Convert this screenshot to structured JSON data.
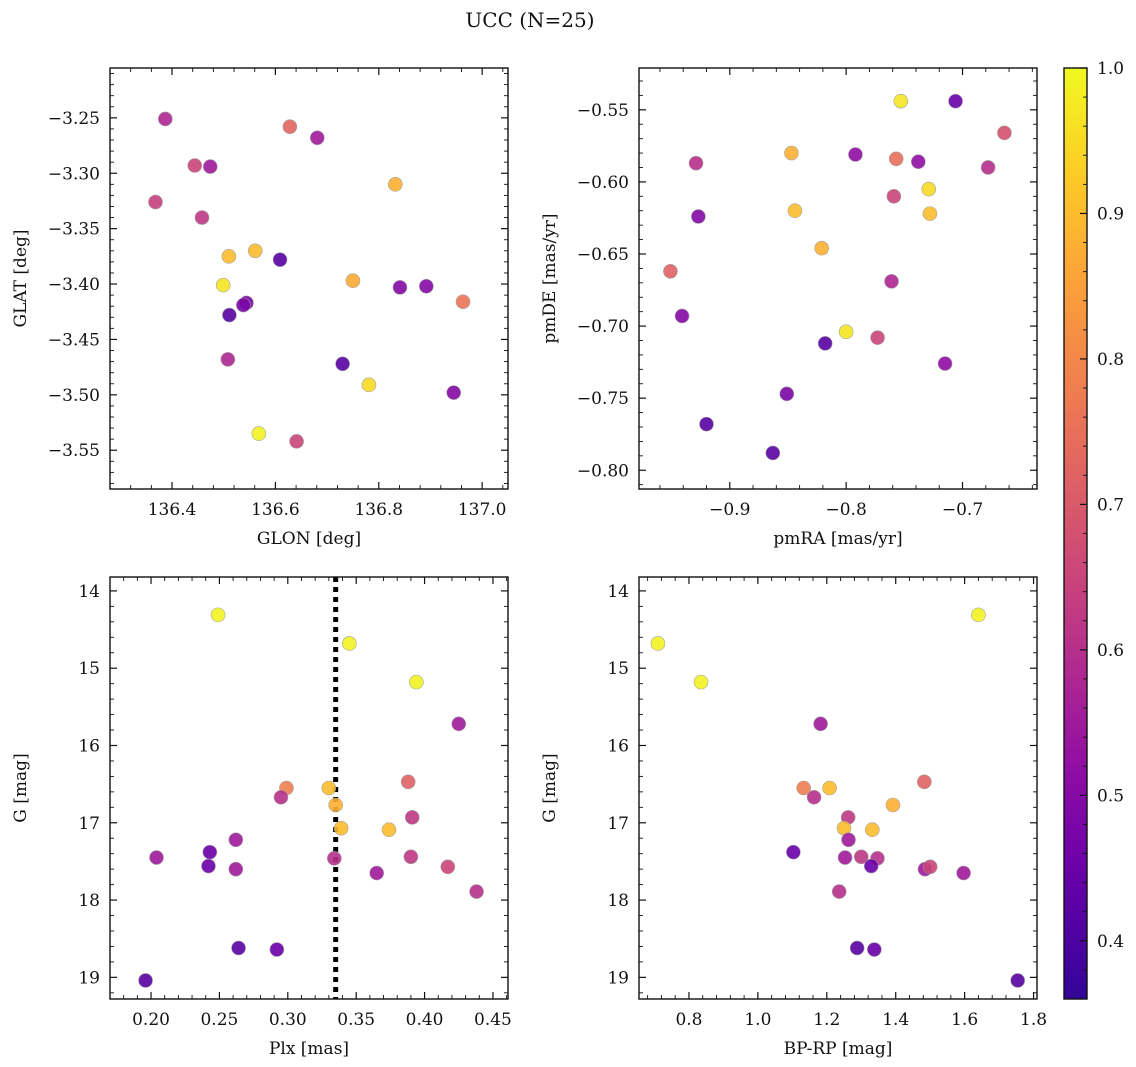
{
  "figure_title": "UCC (N=25)",
  "colorbar": {
    "min": 0.36,
    "max": 1.0,
    "ticks": [
      0.4,
      0.5,
      0.6,
      0.7,
      0.8,
      0.9,
      1.0
    ],
    "tick_labels": [
      "0.4",
      "0.5",
      "0.6",
      "0.7",
      "0.8",
      "0.9",
      "1.0"
    ],
    "colormap": "plasma"
  },
  "chart_data": [
    {
      "type": "scatter",
      "xlabel": "GLON [deg]",
      "ylabel": "GLAT [deg]",
      "xlim": [
        136.28,
        137.05
      ],
      "ylim": [
        -3.585,
        -3.205
      ],
      "xticks": [
        136.4,
        136.6,
        136.8,
        137.0
      ],
      "xtick_labels": [
        "136.4",
        "136.6",
        "136.8",
        "137.0"
      ],
      "yticks": [
        -3.25,
        -3.3,
        -3.35,
        -3.4,
        -3.45,
        -3.5,
        -3.55
      ],
      "ytick_labels": [
        "−3.25",
        "−3.30",
        "−3.35",
        "−3.40",
        "−3.45",
        "−3.50",
        "−3.55"
      ],
      "x": [
        136.387,
        136.628,
        136.444,
        136.474,
        136.681,
        136.368,
        136.832,
        136.458,
        136.561,
        136.51,
        136.609,
        136.499,
        136.75,
        136.841,
        136.892,
        136.963,
        136.544,
        136.538,
        136.511,
        136.73,
        136.781,
        136.508,
        136.945,
        136.568,
        136.641
      ],
      "y": [
        -3.251,
        -3.258,
        -3.293,
        -3.294,
        -3.268,
        -3.326,
        -3.31,
        -3.34,
        -3.37,
        -3.375,
        -3.378,
        -3.401,
        -3.397,
        -3.403,
        -3.402,
        -3.416,
        -3.417,
        -3.419,
        -3.428,
        -3.472,
        -3.491,
        -3.468,
        -3.498,
        -3.535,
        -3.542
      ],
      "c": [
        0.58,
        0.73,
        0.65,
        0.55,
        0.55,
        0.64,
        0.88,
        0.62,
        0.9,
        0.9,
        0.42,
        0.97,
        0.87,
        0.5,
        0.5,
        0.76,
        0.48,
        0.48,
        0.42,
        0.42,
        0.95,
        0.58,
        0.5,
        0.99,
        0.65
      ]
    },
    {
      "type": "scatter",
      "xlabel": "pmRA [mas/yr]",
      "ylabel": "pmDE [mas/yr]",
      "xlim": [
        -0.978,
        -0.636
      ],
      "ylim": [
        -0.813,
        -0.521
      ],
      "xticks": [
        -0.9,
        -0.8,
        -0.7
      ],
      "xtick_labels": [
        "−0.9",
        "−0.8",
        "−0.7"
      ],
      "yticks": [
        -0.55,
        -0.6,
        -0.65,
        -0.7,
        -0.75,
        -0.8
      ],
      "ytick_labels": [
        "−0.55",
        "−0.60",
        "−0.65",
        "−0.70",
        "−0.75",
        "−0.80"
      ],
      "x": [
        -0.753,
        -0.706,
        -0.664,
        -0.847,
        -0.792,
        -0.757,
        -0.738,
        -0.929,
        -0.678,
        -0.729,
        -0.759,
        -0.844,
        -0.728,
        -0.927,
        -0.821,
        -0.951,
        -0.761,
        -0.941,
        -0.8,
        -0.818,
        -0.773,
        -0.715,
        -0.851,
        -0.92,
        -0.863
      ],
      "y": [
        -0.544,
        -0.544,
        -0.566,
        -0.58,
        -0.581,
        -0.584,
        -0.586,
        -0.587,
        -0.59,
        -0.605,
        -0.61,
        -0.62,
        -0.622,
        -0.624,
        -0.646,
        -0.662,
        -0.669,
        -0.693,
        -0.704,
        -0.712,
        -0.708,
        -0.726,
        -0.747,
        -0.768,
        -0.788
      ],
      "c": [
        0.97,
        0.45,
        0.68,
        0.88,
        0.52,
        0.75,
        0.52,
        0.6,
        0.6,
        0.95,
        0.65,
        0.9,
        0.9,
        0.5,
        0.88,
        0.72,
        0.58,
        0.5,
        0.97,
        0.42,
        0.65,
        0.52,
        0.48,
        0.42,
        0.42
      ]
    },
    {
      "type": "scatter",
      "xlabel": "Plx [mas]",
      "ylabel": "G [mag]",
      "xlim": [
        0.17,
        0.461
      ],
      "ylim": [
        19.28,
        13.82
      ],
      "xticks": [
        0.2,
        0.25,
        0.3,
        0.35,
        0.4,
        0.45
      ],
      "xtick_labels": [
        "0.20",
        "0.25",
        "0.30",
        "0.35",
        "0.40",
        "0.45"
      ],
      "yticks": [
        14,
        15,
        16,
        17,
        18,
        19
      ],
      "ytick_labels": [
        "14",
        "15",
        "16",
        "17",
        "18",
        "19"
      ],
      "vline": 0.335,
      "x": [
        0.249,
        0.345,
        0.394,
        0.425,
        0.388,
        0.299,
        0.33,
        0.295,
        0.335,
        0.391,
        0.339,
        0.374,
        0.262,
        0.243,
        0.204,
        0.39,
        0.334,
        0.242,
        0.262,
        0.417,
        0.365,
        0.438,
        0.264,
        0.292,
        0.196
      ],
      "y": [
        14.31,
        14.68,
        15.18,
        15.72,
        16.47,
        16.55,
        16.55,
        16.67,
        16.77,
        16.93,
        17.07,
        17.09,
        17.22,
        17.38,
        17.45,
        17.44,
        17.46,
        17.56,
        17.6,
        17.57,
        17.65,
        17.89,
        18.62,
        18.64,
        19.04
      ],
      "c": [
        0.99,
        0.99,
        0.99,
        0.55,
        0.72,
        0.78,
        0.9,
        0.6,
        0.88,
        0.62,
        0.9,
        0.9,
        0.55,
        0.45,
        0.55,
        0.62,
        0.6,
        0.45,
        0.55,
        0.65,
        0.55,
        0.6,
        0.42,
        0.45,
        0.42
      ]
    },
    {
      "type": "scatter",
      "xlabel": "BP-RP [mag]",
      "ylabel": "G [mag]",
      "xlim": [
        0.655,
        1.81
      ],
      "ylim": [
        19.28,
        13.82
      ],
      "xticks": [
        0.8,
        1.0,
        1.2,
        1.4,
        1.6,
        1.8
      ],
      "xtick_labels": [
        "0.8",
        "1.0",
        "1.2",
        "1.4",
        "1.6",
        "1.8"
      ],
      "yticks": [
        14,
        15,
        16,
        17,
        18,
        19
      ],
      "ytick_labels": [
        "14",
        "15",
        "16",
        "17",
        "18",
        "19"
      ],
      "x": [
        1.64,
        0.71,
        0.835,
        1.182,
        1.483,
        1.133,
        1.208,
        1.163,
        1.392,
        1.262,
        1.25,
        1.332,
        1.263,
        1.103,
        1.253,
        1.3,
        1.347,
        1.329,
        1.485,
        1.5,
        1.597,
        1.236,
        1.288,
        1.338,
        1.754
      ],
      "y": [
        14.31,
        14.68,
        15.18,
        15.72,
        16.47,
        16.55,
        16.55,
        16.67,
        16.77,
        16.93,
        17.07,
        17.09,
        17.22,
        17.38,
        17.45,
        17.44,
        17.46,
        17.56,
        17.6,
        17.57,
        17.65,
        17.89,
        18.62,
        18.64,
        19.04
      ],
      "c": [
        0.99,
        0.99,
        0.99,
        0.55,
        0.72,
        0.78,
        0.9,
        0.6,
        0.88,
        0.62,
        0.9,
        0.9,
        0.55,
        0.45,
        0.55,
        0.62,
        0.6,
        0.45,
        0.55,
        0.65,
        0.55,
        0.6,
        0.42,
        0.45,
        0.42
      ]
    }
  ]
}
